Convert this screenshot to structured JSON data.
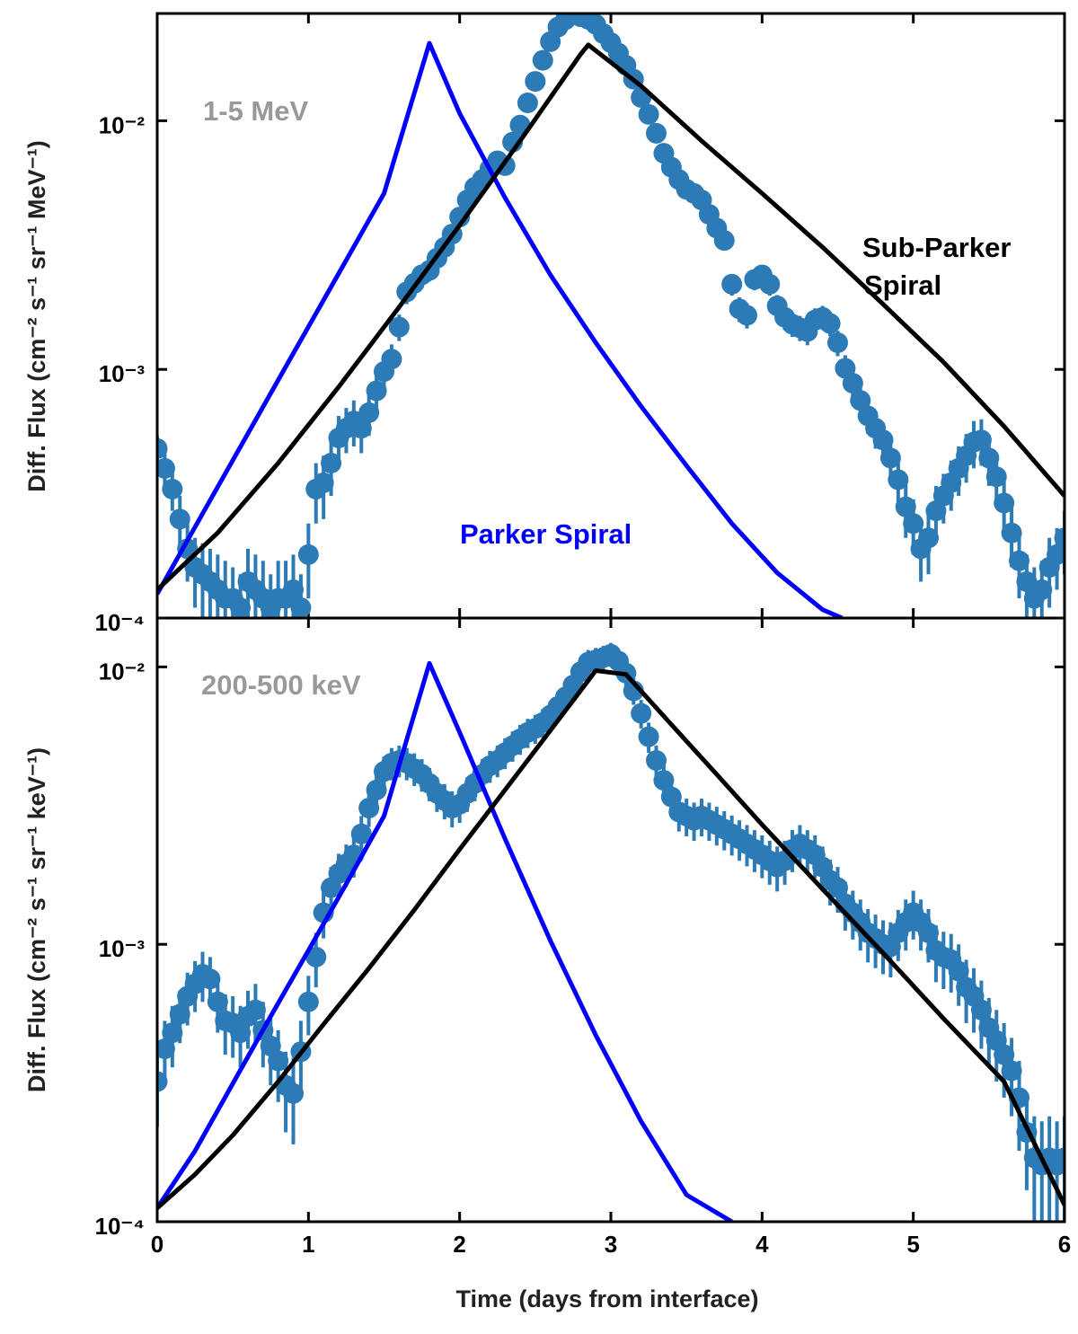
{
  "colors": {
    "parker": "#0000ff",
    "sub_parker": "#000000",
    "data_points": "#2c7bb6",
    "band_label": "#999999"
  },
  "chart_data": [
    {
      "type": "scatter",
      "band_label": "1-5 MeV",
      "ylabel": "Diff. Flux (cm⁻² s⁻¹ sr⁻¹ MeV⁻¹)",
      "xlim": [
        0,
        6
      ],
      "ylim": [
        0.0001,
        0.027
      ],
      "yscale": "log",
      "ytick_labels": [
        "10⁻⁴",
        "10⁻³",
        "10⁻²"
      ],
      "ytick_values": [
        0.0001,
        0.001,
        0.01
      ],
      "annotations": [
        {
          "text": "Sub-Parker",
          "color": "#000000"
        },
        {
          "text": "Spiral",
          "color": "#000000"
        },
        {
          "text": "Parker Spiral",
          "color": "#0000ff"
        }
      ],
      "series": [
        {
          "kind": "line",
          "color": "#0000ff",
          "x": [
            0,
            0.3,
            0.6,
            0.9,
            1.2,
            1.5,
            1.8,
            2.0,
            2.3,
            2.6,
            2.9,
            3.2,
            3.5,
            3.8,
            4.1,
            4.4,
            4.53
          ],
          "y": [
            0.000125,
            0.000263,
            0.000552,
            0.00116,
            0.00243,
            0.0051,
            0.0205,
            0.0107,
            0.0049,
            0.0024,
            0.00128,
            0.00071,
            0.00041,
            0.00024,
            0.000152,
            0.000108,
            0.0001
          ]
        },
        {
          "kind": "line",
          "color": "#000000",
          "x": [
            0,
            0.4,
            0.8,
            1.2,
            1.6,
            2.0,
            2.4,
            2.8,
            2.85,
            3.2,
            3.6,
            4.0,
            4.4,
            4.8,
            5.2,
            5.6,
            6.0
          ],
          "y": [
            0.00013,
            0.00022,
            0.00042,
            0.00085,
            0.00178,
            0.0038,
            0.0083,
            0.0185,
            0.0202,
            0.0138,
            0.0083,
            0.0051,
            0.0031,
            0.00183,
            0.00107,
            0.00059,
            0.00031
          ]
        },
        {
          "kind": "points",
          "color": "#2c7bb6",
          "x": [
            0.0,
            0.05,
            0.1,
            0.15,
            0.2,
            0.25,
            0.3,
            0.35,
            0.4,
            0.45,
            0.5,
            0.55,
            0.6,
            0.65,
            0.7,
            0.75,
            0.8,
            0.85,
            0.9,
            0.95,
            1.0,
            1.05,
            1.1,
            1.15,
            1.2,
            1.25,
            1.3,
            1.35,
            1.4,
            1.45,
            1.5,
            1.55,
            1.6,
            1.65,
            1.7,
            1.75,
            1.8,
            1.85,
            1.9,
            1.95,
            2.0,
            2.05,
            2.1,
            2.15,
            2.2,
            2.25,
            2.3,
            2.35,
            2.4,
            2.45,
            2.5,
            2.55,
            2.6,
            2.65,
            2.7,
            2.75,
            2.8,
            2.85,
            2.9,
            2.95,
            3.0,
            3.05,
            3.1,
            3.15,
            3.2,
            3.25,
            3.3,
            3.35,
            3.4,
            3.45,
            3.5,
            3.55,
            3.6,
            3.65,
            3.7,
            3.75,
            3.8,
            3.85,
            3.9,
            3.95,
            4.0,
            4.05,
            4.1,
            4.15,
            4.2,
            4.25,
            4.3,
            4.35,
            4.4,
            4.45,
            4.5,
            4.55,
            4.6,
            4.65,
            4.7,
            4.75,
            4.8,
            4.85,
            4.9,
            4.95,
            5.0,
            5.05,
            5.1,
            5.15,
            5.2,
            5.25,
            5.3,
            5.35,
            5.4,
            5.45,
            5.5,
            5.55,
            5.6,
            5.65,
            5.7,
            5.75,
            5.8,
            5.85,
            5.9,
            5.95,
            6.0
          ],
          "y": [
            0.00048,
            0.0004,
            0.00033,
            0.00025,
            0.00019,
            0.00016,
            0.00015,
            0.00014,
            0.00013,
            0.00012,
            0.00012,
            0.00011,
            0.00014,
            0.00013,
            0.00012,
            0.00011,
            0.00012,
            0.00012,
            0.00013,
            0.00011,
            0.00018,
            0.00033,
            0.00035,
            0.00042,
            0.00053,
            0.00058,
            0.00062,
            0.00058,
            0.00067,
            0.00082,
            0.00098,
            0.0011,
            0.00148,
            0.00205,
            0.00222,
            0.0024,
            0.0025,
            0.0028,
            0.0031,
            0.0035,
            0.0041,
            0.0048,
            0.0054,
            0.0058,
            0.0064,
            0.0069,
            0.0066,
            0.0082,
            0.0096,
            0.0118,
            0.0144,
            0.0175,
            0.0208,
            0.0238,
            0.0255,
            0.027,
            0.0262,
            0.0256,
            0.0244,
            0.0224,
            0.0206,
            0.0187,
            0.0167,
            0.0147,
            0.0124,
            0.0106,
            0.0089,
            0.0074,
            0.0065,
            0.0058,
            0.0053,
            0.0051,
            0.0048,
            0.0042,
            0.0037,
            0.0033,
            0.0022,
            0.00175,
            0.00165,
            0.0023,
            0.0024,
            0.0022,
            0.0018,
            0.00162,
            0.00152,
            0.00147,
            0.00142,
            0.00158,
            0.00162,
            0.00153,
            0.00128,
            0.00101,
            0.00088,
            0.00075,
            0.00065,
            0.00058,
            0.00052,
            0.00044,
            0.00036,
            0.00028,
            0.00024,
            0.00019,
            0.00021,
            0.00027,
            0.00031,
            0.00035,
            0.0004,
            0.00045,
            0.00051,
            0.00052,
            0.00044,
            0.00037,
            0.00029,
            0.00022,
            0.00017,
            0.00014,
            0.00012,
            0.00013,
            0.00016,
            0.00018,
            0.00021
          ],
          "err": [
            6e-05,
            6e-05,
            6e-05,
            6e-05,
            5e-05,
            5e-05,
            5e-05,
            5e-05,
            5e-05,
            5e-05,
            4e-05,
            4e-05,
            5e-05,
            5e-05,
            5e-05,
            4e-05,
            5e-05,
            5e-05,
            5e-05,
            4e-05,
            6e-05,
            9e-05,
            0.0001,
            0.00011,
            0.00012,
            0.00012,
            0.00013,
            0.00012,
            0.00013,
            0.00014,
            0.00015,
            0.00016,
            0.00018,
            0.00022,
            0.00022,
            0.00024,
            0.00024,
            0.00026,
            0.00028,
            0.0003,
            0.00034,
            0.00038,
            0.00042,
            0.00044,
            0.00048,
            0.0005,
            0.0005,
            0.0006,
            0.0007,
            0.0008,
            0.0009,
            0.001,
            0.0012,
            0.0013,
            0.0013,
            0.0013,
            0.0013,
            0.0013,
            0.0013,
            0.0012,
            0.0012,
            0.0011,
            0.001,
            0.0009,
            0.0008,
            0.0007,
            0.0006,
            0.0005,
            0.00045,
            0.0004,
            0.00038,
            0.00037,
            0.00035,
            0.00032,
            0.0003,
            0.00028,
            0.00022,
            0.0002,
            0.00019,
            0.00022,
            0.00023,
            0.00022,
            0.00019,
            0.00018,
            0.00017,
            0.00017,
            0.00017,
            0.00018,
            0.00018,
            0.00017,
            0.00015,
            0.00013,
            0.00012,
            0.00011,
            0.0001,
            0.0001,
            9e-05,
            8e-05,
            8e-05,
            7e-05,
            6e-05,
            5e-05,
            6e-05,
            7e-05,
            7e-05,
            8e-05,
            9e-05,
            0.0001,
            0.00011,
            0.00011,
            0.0001,
            9e-05,
            7e-05,
            6e-05,
            5e-05,
            4e-05,
            4e-05,
            4e-05,
            5e-05,
            5e-05,
            6e-05
          ]
        }
      ]
    },
    {
      "type": "scatter",
      "band_label": "200-500 keV",
      "ylabel": "Diff. Flux (cm⁻² s⁻¹ sr⁻¹ keV⁻¹)",
      "xlabel": "Time (days from interface)",
      "xlim": [
        0,
        6
      ],
      "ylim": [
        0.0001,
        0.015
      ],
      "yscale": "log",
      "xtick_labels": [
        "0",
        "1",
        "2",
        "3",
        "4",
        "5",
        "6"
      ],
      "xtick_values": [
        0,
        1,
        2,
        3,
        4,
        5,
        6
      ],
      "ytick_labels": [
        "10⁻⁴",
        "10⁻³",
        "10⁻²"
      ],
      "ytick_values": [
        0.0001,
        0.001,
        0.01
      ],
      "series": [
        {
          "kind": "line",
          "color": "#0000ff",
          "x": [
            0,
            0.25,
            0.5,
            0.75,
            1.0,
            1.25,
            1.5,
            1.8,
            2.0,
            2.3,
            2.6,
            2.9,
            3.2,
            3.5,
            3.8
          ],
          "y": [
            0.000112,
            0.00018,
            0.000315,
            0.00055,
            0.00095,
            0.00165,
            0.0029,
            0.0103,
            0.0058,
            0.0024,
            0.00103,
            0.00047,
            0.00023,
            0.000125,
            0.0001
          ]
        },
        {
          "kind": "line",
          "color": "#000000",
          "x": [
            0,
            0.25,
            0.5,
            0.8,
            1.1,
            1.4,
            1.7,
            2.0,
            2.3,
            2.6,
            2.9,
            3.1,
            3.4,
            3.7,
            4.0,
            4.4,
            4.8,
            5.2,
            5.6,
            6.0
          ],
          "y": [
            0.000112,
            0.000148,
            0.000205,
            0.00032,
            0.000515,
            0.00082,
            0.00133,
            0.0022,
            0.0036,
            0.0059,
            0.0097,
            0.0094,
            0.0062,
            0.0041,
            0.0027,
            0.00158,
            0.00093,
            0.00054,
            0.00032,
            0.000115
          ]
        },
        {
          "kind": "points",
          "color": "#2c7bb6",
          "x": [
            0.0,
            0.05,
            0.1,
            0.15,
            0.2,
            0.25,
            0.3,
            0.35,
            0.4,
            0.45,
            0.5,
            0.55,
            0.6,
            0.65,
            0.7,
            0.75,
            0.8,
            0.85,
            0.9,
            0.95,
            1.0,
            1.05,
            1.1,
            1.15,
            1.2,
            1.25,
            1.3,
            1.35,
            1.4,
            1.45,
            1.5,
            1.55,
            1.6,
            1.65,
            1.7,
            1.75,
            1.8,
            1.85,
            1.9,
            1.95,
            2.0,
            2.05,
            2.1,
            2.15,
            2.2,
            2.25,
            2.3,
            2.35,
            2.4,
            2.45,
            2.5,
            2.55,
            2.6,
            2.65,
            2.7,
            2.75,
            2.8,
            2.85,
            2.9,
            2.95,
            3.0,
            3.05,
            3.1,
            3.15,
            3.2,
            3.25,
            3.3,
            3.35,
            3.4,
            3.45,
            3.5,
            3.55,
            3.6,
            3.65,
            3.7,
            3.75,
            3.8,
            3.85,
            3.9,
            3.95,
            4.0,
            4.05,
            4.1,
            4.15,
            4.2,
            4.25,
            4.3,
            4.35,
            4.4,
            4.45,
            4.5,
            4.55,
            4.6,
            4.65,
            4.7,
            4.75,
            4.8,
            4.85,
            4.9,
            4.95,
            5.0,
            5.05,
            5.1,
            5.15,
            5.2,
            5.25,
            5.3,
            5.35,
            5.4,
            5.45,
            5.5,
            5.55,
            5.6,
            5.65,
            5.7,
            5.75,
            5.8,
            5.85,
            5.9,
            5.95,
            6.0
          ],
          "y": [
            0.00032,
            0.00042,
            0.00048,
            0.00056,
            0.00065,
            0.00072,
            0.00078,
            0.00075,
            0.00062,
            0.00053,
            0.00052,
            0.00048,
            0.00055,
            0.00058,
            0.00049,
            0.00043,
            0.00038,
            0.00031,
            0.00029,
            0.00041,
            0.00062,
            0.0009,
            0.0013,
            0.0016,
            0.0018,
            0.00195,
            0.0021,
            0.0025,
            0.0031,
            0.0036,
            0.0042,
            0.0045,
            0.0046,
            0.0045,
            0.0043,
            0.0041,
            0.0038,
            0.0035,
            0.0033,
            0.0031,
            0.0032,
            0.0035,
            0.0038,
            0.0041,
            0.0044,
            0.0046,
            0.0049,
            0.0052,
            0.0055,
            0.0058,
            0.006,
            0.0063,
            0.0067,
            0.0072,
            0.0078,
            0.0086,
            0.0096,
            0.0104,
            0.0106,
            0.0108,
            0.0111,
            0.0105,
            0.0095,
            0.0082,
            0.0068,
            0.0056,
            0.0046,
            0.0039,
            0.0034,
            0.003,
            0.0029,
            0.0028,
            0.0029,
            0.0028,
            0.0027,
            0.0026,
            0.0025,
            0.0024,
            0.0023,
            0.0022,
            0.0021,
            0.002,
            0.0019,
            0.002,
            0.0022,
            0.0023,
            0.0022,
            0.0021,
            0.0019,
            0.0017,
            0.0016,
            0.0014,
            0.0013,
            0.0012,
            0.0011,
            0.00105,
            0.001,
            0.00098,
            0.0011,
            0.0012,
            0.0013,
            0.0012,
            0.0011,
            0.00095,
            0.0009,
            0.00088,
            0.0008,
            0.0007,
            0.00065,
            0.00058,
            0.0005,
            0.00045,
            0.0004,
            0.00035,
            0.00028,
            0.00021,
            0.00017,
            0.00016,
            0.00017,
            0.00016,
            0.00017
          ],
          "err": [
            0.0001,
            0.00011,
            0.00012,
            0.00012,
            0.00014,
            0.00015,
            0.00016,
            0.00015,
            0.00014,
            0.00013,
            0.00013,
            0.00012,
            0.00013,
            0.00014,
            0.00013,
            0.00012,
            0.00011,
            0.0001,
            0.0001,
            0.00012,
            0.00015,
            0.0002,
            0.00025,
            0.0003,
            0.00032,
            0.00034,
            0.00036,
            0.0004,
            0.00045,
            0.0005,
            0.00055,
            0.0006,
            0.0006,
            0.0006,
            0.00058,
            0.00055,
            0.00052,
            0.0005,
            0.00048,
            0.00046,
            0.00046,
            0.0005,
            0.00052,
            0.00055,
            0.00058,
            0.0006,
            0.00062,
            0.00065,
            0.00068,
            0.0007,
            0.00072,
            0.00075,
            0.0008,
            0.00085,
            0.0009,
            0.00095,
            0.001,
            0.0011,
            0.0011,
            0.0011,
            0.0011,
            0.0011,
            0.001,
            0.0009,
            0.0008,
            0.0007,
            0.0006,
            0.00055,
            0.0005,
            0.00045,
            0.00045,
            0.00044,
            0.00045,
            0.00044,
            0.00043,
            0.00042,
            0.00041,
            0.0004,
            0.00039,
            0.00038,
            0.00037,
            0.00036,
            0.00035,
            0.00036,
            0.00038,
            0.00039,
            0.00038,
            0.00037,
            0.00035,
            0.00032,
            0.0003,
            0.00028,
            0.00026,
            0.00025,
            0.00024,
            0.00023,
            0.00022,
            0.00022,
            0.00023,
            0.00025,
            0.00026,
            0.00025,
            0.00024,
            0.00022,
            0.00021,
            0.00021,
            0.0002,
            0.00018,
            0.00017,
            0.00016,
            0.00014,
            0.00013,
            0.00012,
            0.00011,
            0.0001,
            8e-05,
            7e-05,
            7e-05,
            7e-05,
            7e-05,
            7e-05
          ]
        }
      ]
    }
  ]
}
